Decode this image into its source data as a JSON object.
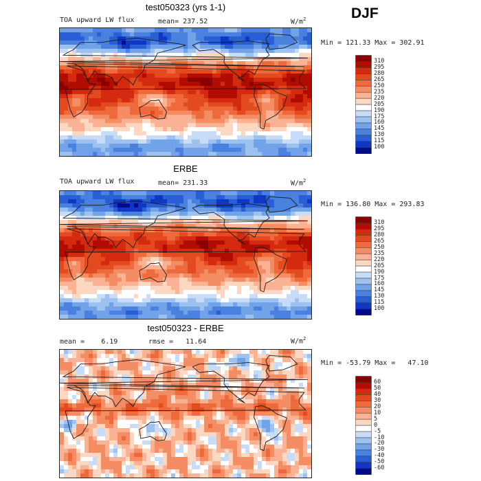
{
  "season": "DJF",
  "units_base": "W/m",
  "units_exp": "2",
  "chart_data": [
    {
      "type": "heatmap",
      "title": "test050323 (yrs 1-1)",
      "variable": "TOA upward LW flux",
      "stat_left": "mean= 237.52",
      "min_max": "Min = 121.33 Max = 302.91",
      "colorbar": {
        "levels": [
          "310",
          "295",
          "280",
          "265",
          "250",
          "235",
          "220",
          "205",
          "190",
          "175",
          "160",
          "145",
          "130",
          "115",
          "100"
        ],
        "colors": [
          "#8b0000",
          "#b00d00",
          "#d42b10",
          "#e34a1f",
          "#ee6a3c",
          "#f58d64",
          "#f9b394",
          "#fcd8c3",
          "#ffffff",
          "#c8dcf7",
          "#9dc2f0",
          "#72a3e8",
          "#4a80de",
          "#2a5ed4",
          "#1036c4",
          "#000b8f"
        ]
      }
    },
    {
      "type": "heatmap",
      "title": "ERBE",
      "variable": "TOA upward LW flux",
      "stat_left": "mean= 231.33",
      "min_max": "Min = 136.80 Max = 293.83",
      "colorbar": {
        "levels": [
          "310",
          "295",
          "280",
          "265",
          "250",
          "235",
          "220",
          "205",
          "190",
          "175",
          "160",
          "145",
          "130",
          "115",
          "100"
        ],
        "colors": [
          "#8b0000",
          "#b00d00",
          "#d42b10",
          "#e34a1f",
          "#ee6a3c",
          "#f58d64",
          "#f9b394",
          "#fcd8c3",
          "#ffffff",
          "#c8dcf7",
          "#9dc2f0",
          "#72a3e8",
          "#4a80de",
          "#2a5ed4",
          "#1036c4",
          "#000b8f"
        ]
      }
    },
    {
      "type": "heatmap",
      "title": "test050323 - ERBE",
      "stat_left": "mean =    6.19",
      "stat_mid": "rmse =   11.64",
      "min_max": "Min = -53.79 Max =   47.10",
      "colorbar": {
        "levels": [
          "60",
          "50",
          "40",
          "30",
          "20",
          "10",
          "5",
          "0",
          "-5",
          "-10",
          "-20",
          "-30",
          "-40",
          "-50",
          "-60"
        ],
        "colors": [
          "#8b0000",
          "#b00d00",
          "#d42b10",
          "#e34a1f",
          "#ee6a3c",
          "#f58d64",
          "#f9b394",
          "#fcd8c3",
          "#ffffff",
          "#c8dcf7",
          "#9dc2f0",
          "#72a3e8",
          "#4a80de",
          "#2a5ed4",
          "#1036c4",
          "#000b8f"
        ]
      }
    }
  ]
}
